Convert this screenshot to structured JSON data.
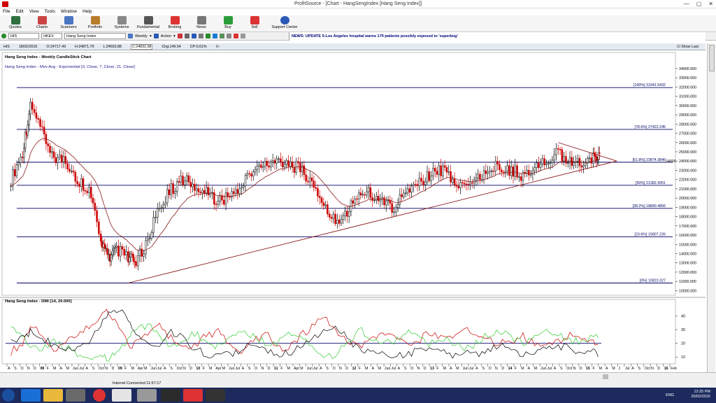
{
  "window": {
    "title": "ProfitSource - [Chart - HangSengIndex [Hang Seng Index]]"
  },
  "menu": [
    "File",
    "Edit",
    "View",
    "Tools",
    "Window",
    "Help"
  ],
  "toolbar": [
    "Quotes",
    "Charts",
    "Scanners",
    "Portfolio",
    "Systems",
    "Fundamental",
    "Broking",
    "News",
    "Buy",
    "Sell",
    "Support Center"
  ],
  "symbolbar": {
    "symbol": "HIS",
    "code": "HKEX",
    "name": "Hang Seng Index",
    "period": "Weekly",
    "action": "Action"
  },
  "news_text": "NEWS: UPDATE 5-Los Angeles hospital warns 179 patients possibly exposed to 'superbug'",
  "infobar": {
    "sym": "HIS",
    "date": "18/02/2015",
    "open": "O:24717.49",
    "high": "H:24871.79",
    "low": "L:24653.88",
    "close": "C:24832.08",
    "chg": "Chg:149.54",
    "cp": "CP:0.61%",
    "v": "V:-",
    "show_last": "Show Last"
  },
  "chart_data": [
    {
      "type": "line",
      "title": "Hang Seng Index - Weekly CandleStick Chart",
      "subtitle": "Hang Seng Index - Mov Avg - Exponential [3, Close, 7, Close, 21, Close]",
      "yticks": [
        10000,
        11000,
        12000,
        13000,
        14000,
        15000,
        16000,
        17000,
        18000,
        19000,
        20000,
        21000,
        22000,
        23000,
        24000,
        25000,
        26000,
        27000,
        28000,
        29000,
        30000,
        31000,
        32000,
        33000,
        34000
      ],
      "ytick_labels": [
        "10000.000",
        "11000.000",
        "12000.000",
        "13000.000",
        "14000.000",
        "15000.000",
        "16000.000",
        "17000.000",
        "18000.000",
        "19000.000",
        "20000.000",
        "21000.000",
        "22000.000",
        "23000.000",
        "24000.000",
        "25000.000",
        "26000.000",
        "27000.000",
        "28000.000",
        "29000.000",
        "30000.000",
        "31000.000",
        "32000.000",
        "33000.000",
        "34000.000"
      ],
      "ylim": [
        9500,
        34600
      ],
      "last_price_label": "24000",
      "fib_levels": [
        {
          "label": "[100%] 31941.5432",
          "value": 31941.5432
        },
        {
          "label": "[78.6%] 27422.245",
          "value": 27422.245
        },
        {
          "label": "[61.8%] 23874.3846",
          "value": 23874.3846
        },
        {
          "label": "[50%] 21382.4351",
          "value": 21382.4351
        },
        {
          "label": "[38.2%] 18890.4856",
          "value": 18890.4856
        },
        {
          "label": "[23.6%] 15807.226",
          "value": 15807.226
        },
        {
          "label": "[0%] 10823.327",
          "value": 10823.327
        }
      ],
      "x": [
        2007.6,
        2007.75,
        2007.85,
        2008.0,
        2008.15,
        2008.3,
        2008.45,
        2008.6,
        2008.75,
        2008.85,
        2008.95,
        2009.1,
        2009.2,
        2009.35,
        2009.5,
        2009.65,
        2009.8,
        2009.95,
        2010.1,
        2010.25,
        2010.4,
        2010.55,
        2010.7,
        2010.85,
        2011.0,
        2011.15,
        2011.3,
        2011.45,
        2011.6,
        2011.75,
        2011.9,
        2012.05,
        2012.2,
        2012.35,
        2012.5,
        2012.65,
        2012.8,
        2012.95,
        2013.1,
        2013.25,
        2013.4,
        2013.55,
        2013.7,
        2013.85,
        2014.0,
        2014.15,
        2014.3,
        2014.45,
        2014.6,
        2014.75,
        2014.9,
        2015.05,
        2015.13
      ],
      "series": [
        {
          "values": [
            22000,
            25000,
            30000,
            27000,
            24500,
            24000,
            22000,
            21000,
            15000,
            13500,
            14500,
            13500,
            13000,
            15500,
            19000,
            21000,
            22000,
            21500,
            20500,
            19800,
            20000,
            21500,
            23000,
            23500,
            24000,
            23800,
            23000,
            22000,
            19000,
            17500,
            18500,
            20500,
            20500,
            19500,
            19000,
            20800,
            21500,
            22500,
            23000,
            22000,
            21000,
            22000,
            23000,
            23500,
            23000,
            22500,
            23000,
            24000,
            25000,
            24000,
            23500,
            24300,
            24832
          ]
        }
      ],
      "trendlines": [
        {
          "from": [
            2009.1,
            10823
          ],
          "to": [
            2015.35,
            24000
          ]
        },
        {
          "from": [
            2014.6,
            26000
          ],
          "to": [
            2015.35,
            24000
          ]
        }
      ]
    },
    {
      "type": "line",
      "title": "Hang Seng Index - DMI [14, 20.000]",
      "yticks": [
        10,
        20,
        30,
        40
      ],
      "ylim": [
        6,
        48
      ],
      "x": [
        2007.6,
        2007.75,
        2007.85,
        2008.0,
        2008.15,
        2008.3,
        2008.45,
        2008.6,
        2008.75,
        2008.85,
        2008.95,
        2009.1,
        2009.2,
        2009.35,
        2009.5,
        2009.65,
        2009.8,
        2009.95,
        2010.1,
        2010.25,
        2010.4,
        2010.55,
        2010.7,
        2010.85,
        2011.0,
        2011.15,
        2011.3,
        2011.45,
        2011.6,
        2011.75,
        2011.9,
        2012.05,
        2012.2,
        2012.35,
        2012.5,
        2012.65,
        2012.8,
        2012.95,
        2013.1,
        2013.25,
        2013.4,
        2013.55,
        2013.7,
        2013.85,
        2014.0,
        2014.15,
        2014.3,
        2014.45,
        2014.6,
        2014.75,
        2014.9,
        2015.05,
        2015.13
      ],
      "series": [
        {
          "values": [
            14,
            20,
            34,
            25,
            12,
            20,
            25,
            33,
            40,
            44,
            35,
            18,
            20,
            28,
            32,
            24,
            15,
            17,
            26,
            28,
            20,
            15,
            21,
            28,
            18,
            16,
            26,
            32,
            40,
            30,
            22,
            17,
            24,
            28,
            25,
            20,
            22,
            27,
            23,
            25,
            30,
            27,
            24,
            20,
            22,
            25,
            20,
            17,
            22,
            26,
            24,
            21,
            19
          ],
          "color": "#cc0000"
        },
        {
          "values": [
            30,
            25,
            16,
            14,
            22,
            17,
            12,
            11,
            10,
            9,
            12,
            24,
            30,
            34,
            25,
            18,
            22,
            28,
            20,
            18,
            24,
            29,
            26,
            20,
            18,
            28,
            24,
            18,
            11,
            12,
            20,
            30,
            25,
            19,
            22,
            28,
            27,
            20,
            24,
            21,
            15,
            20,
            26,
            29,
            25,
            20,
            25,
            31,
            27,
            22,
            21,
            26,
            24
          ],
          "color": "#33cc33"
        },
        {
          "values": [
            20,
            24,
            28,
            25,
            18,
            15,
            16,
            22,
            34,
            44,
            45,
            38,
            26,
            18,
            20,
            28,
            24,
            16,
            12,
            11,
            12,
            16,
            20,
            16,
            12,
            13,
            17,
            22,
            30,
            33,
            24,
            16,
            14,
            13,
            12,
            12,
            14,
            18,
            13,
            12,
            13,
            12,
            16,
            18,
            15,
            11,
            12,
            16,
            18,
            16,
            14,
            13,
            13
          ],
          "color": "#000000"
        }
      ]
    }
  ],
  "xaxis_labels": [
    "A",
    "S",
    "O",
    "N",
    "D",
    "08",
    "F",
    "M",
    "A",
    "M",
    "Jun",
    "Jul",
    "A",
    "S",
    "Oct",
    "N",
    "D",
    "09",
    "F",
    "M",
    "Apr",
    "M",
    "Jun",
    "Jul",
    "A",
    "S",
    "Oct",
    "N",
    "D",
    "10",
    "F",
    "M",
    "Apr",
    "M",
    "Jun",
    "Jul",
    "A",
    "S",
    "O",
    "N",
    "D",
    "11",
    "F",
    "M",
    "Apr",
    "M",
    "Jun",
    "Jul",
    "A",
    "S",
    "O",
    "N",
    "D",
    "12",
    "F",
    "M",
    "A",
    "M",
    "Jun",
    "Jul",
    "A",
    "S",
    "O",
    "N",
    "D",
    "13",
    "F",
    "M",
    "A",
    "M",
    "Jun",
    "Jul",
    "A",
    "S",
    "O",
    "N",
    "D",
    "14",
    "F",
    "M",
    "A",
    "M",
    "Jun",
    "Jul",
    "A",
    "S",
    "Oct",
    "N",
    "D",
    "15",
    "F",
    "M",
    "A",
    "M",
    "J",
    "Jul",
    "A",
    "S",
    "Oct",
    "N",
    "D",
    "16",
    "Feb"
  ],
  "status": {
    "connection": "Internet Connected 11:57:17"
  },
  "tray": {
    "time": "12:25 PM",
    "date": "20/02/2015",
    "lang": "ENG"
  },
  "colors": {
    "fib": "#000066",
    "trend": "#8b1a1a",
    "candle_up": "#000000",
    "candle_down": "#cc0000",
    "ma": "#8b1a1a"
  }
}
